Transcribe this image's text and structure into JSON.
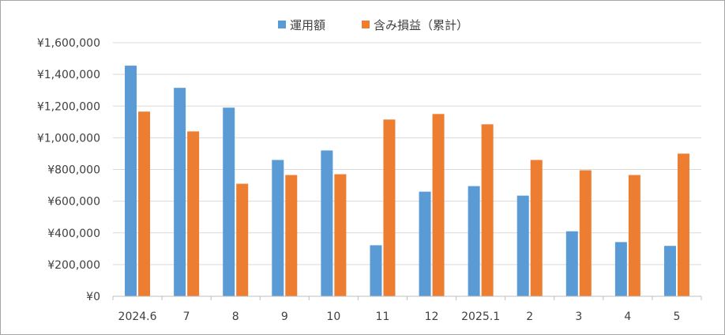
{
  "chart_data": {
    "type": "bar",
    "categories": [
      "2024.6",
      "7",
      "8",
      "9",
      "10",
      "11",
      "12",
      "2025.1",
      "2",
      "3",
      "4",
      "5"
    ],
    "series": [
      {
        "name": "運用額",
        "color": "#5b9bd5",
        "values": [
          1455000,
          1315000,
          1190000,
          860000,
          920000,
          322000,
          660000,
          695000,
          635000,
          410000,
          342000,
          318000
        ]
      },
      {
        "name": "含み損益（累計）",
        "color": "#ed7d31",
        "values": [
          1165000,
          1040000,
          710000,
          765000,
          770000,
          1115000,
          1150000,
          1085000,
          860000,
          795000,
          765000,
          900000
        ]
      }
    ],
    "ylim": [
      0,
      1600000
    ],
    "yticks": [
      "¥0",
      "¥200,000",
      "¥400,000",
      "¥600,000",
      "¥800,000",
      "¥1,000,000",
      "¥1,200,000",
      "¥1,400,000",
      "¥1,600,000"
    ],
    "grid": true,
    "legend": "top-center",
    "title": "",
    "xlabel": "",
    "ylabel": ""
  }
}
